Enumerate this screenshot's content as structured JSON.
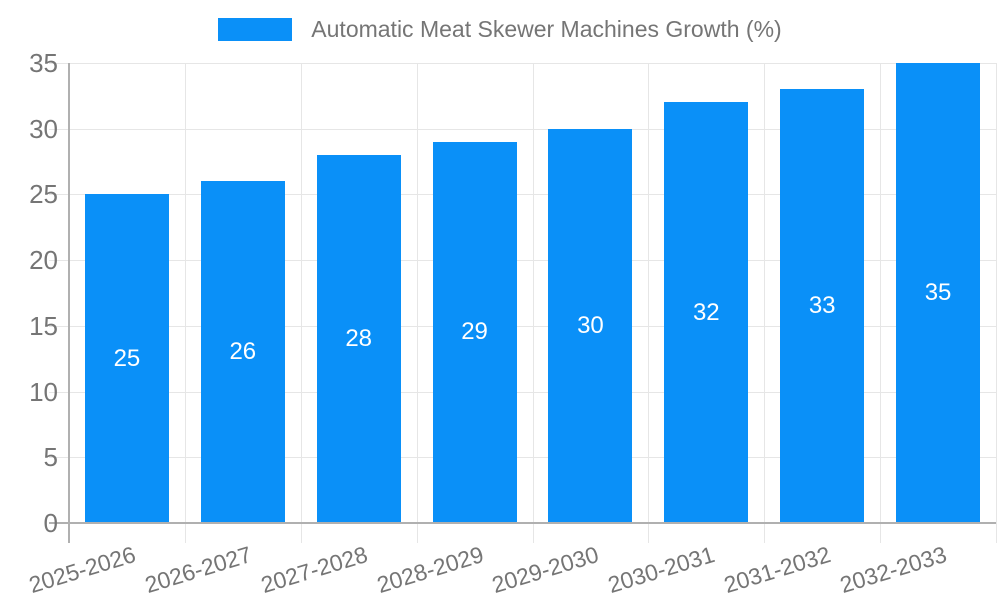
{
  "legend": {
    "label": "Automatic Meat Skewer Machines Growth (%)"
  },
  "colors": {
    "background": "#ffffff",
    "bar": "#0a90f8",
    "grid": "#e6e6e6",
    "axis": "#b0b0b0",
    "tick_text": "#757575",
    "bar_label_text": "#ffffff"
  },
  "chart_data": {
    "type": "bar",
    "title": "",
    "legend_entries": [
      "Automatic Meat Skewer Machines Growth (%)"
    ],
    "legend_position": "top",
    "grid": "both",
    "categories": [
      "2025-2026",
      "2026-2027",
      "2027-2028",
      "2028-2029",
      "2029-2030",
      "2030-2031",
      "2031-2032",
      "2032-2033"
    ],
    "values": [
      25,
      26,
      28,
      29,
      30,
      32,
      33,
      35
    ],
    "bar_labels": [
      "25",
      "26",
      "28",
      "29",
      "30",
      "32",
      "33",
      "35"
    ],
    "bar_label_position": "center-inside",
    "xlabel": "",
    "ylabel": "",
    "ylim": [
      0,
      35
    ],
    "yticks": [
      0,
      5,
      10,
      15,
      20,
      25,
      30,
      35
    ],
    "x_tick_rotation_deg": -17
  }
}
